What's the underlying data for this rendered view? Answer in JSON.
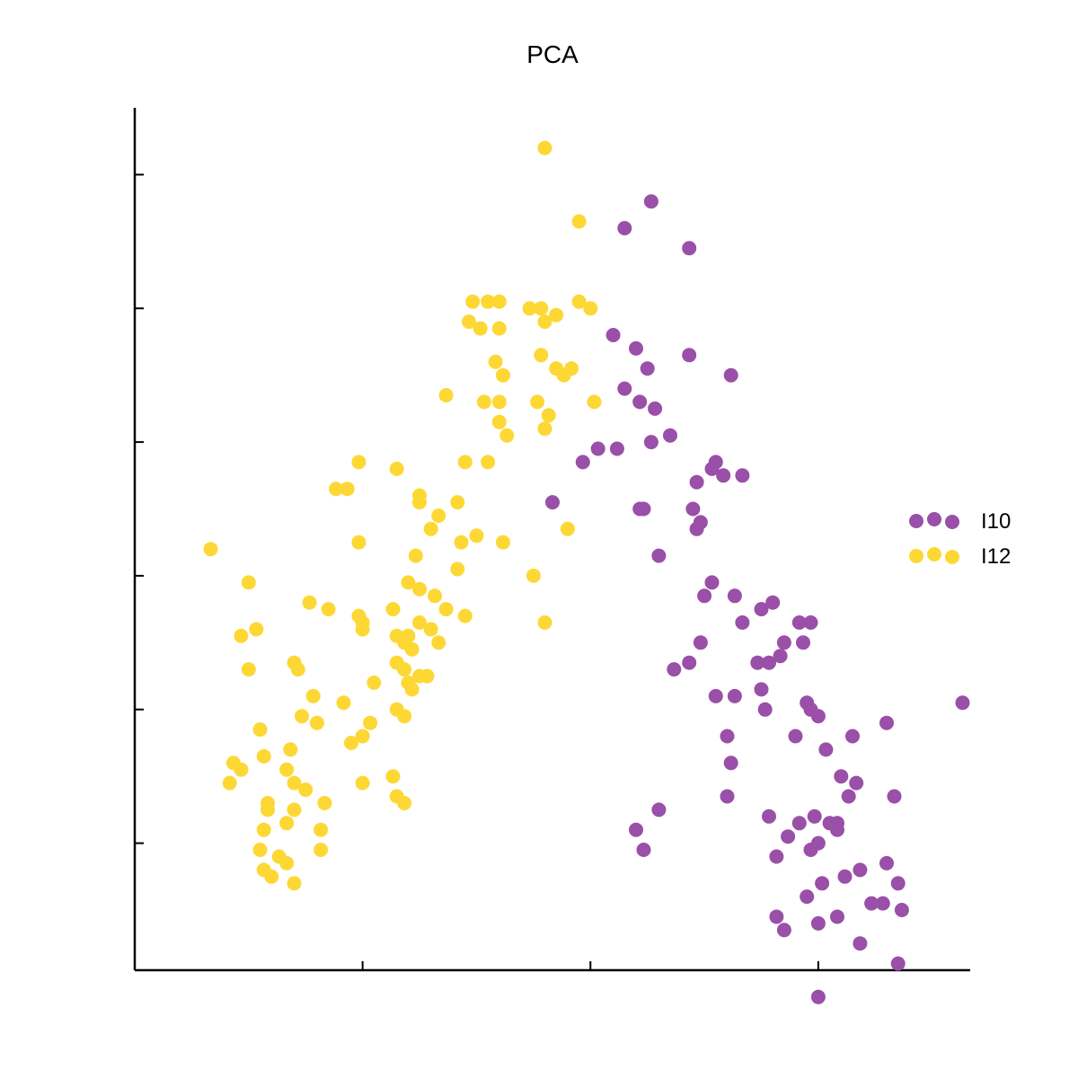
{
  "chart_data": {
    "type": "scatter",
    "title": "PCA",
    "xlabel": "",
    "ylabel": "",
    "xlim": [
      -0.6,
      1.6
    ],
    "ylim": [
      -5.9,
      7.0
    ],
    "xticks": [
      0,
      0.6,
      1.2
    ],
    "yticks": [
      -4,
      -2,
      0,
      2,
      4,
      6
    ],
    "tick_labels_shown": false,
    "grid": false,
    "legend_position": "right",
    "series": [
      {
        "name": "I10",
        "color": "#9a4fa8",
        "points": [
          [
            0.69,
            5.2
          ],
          [
            0.76,
            5.6
          ],
          [
            0.86,
            4.9
          ],
          [
            0.66,
            3.6
          ],
          [
            0.72,
            3.4
          ],
          [
            0.75,
            3.1
          ],
          [
            0.86,
            3.3
          ],
          [
            0.97,
            3.0
          ],
          [
            0.69,
            2.8
          ],
          [
            0.73,
            2.6
          ],
          [
            0.77,
            2.5
          ],
          [
            0.76,
            2.0
          ],
          [
            0.81,
            2.1
          ],
          [
            0.62,
            1.9
          ],
          [
            0.67,
            1.9
          ],
          [
            0.58,
            1.7
          ],
          [
            0.5,
            1.1
          ],
          [
            0.73,
            1.0
          ],
          [
            0.74,
            1.0
          ],
          [
            0.87,
            1.0
          ],
          [
            0.88,
            1.4
          ],
          [
            0.93,
            1.7
          ],
          [
            0.95,
            1.5
          ],
          [
            0.92,
            1.6
          ],
          [
            1.0,
            1.5
          ],
          [
            0.89,
            0.8
          ],
          [
            0.88,
            0.7
          ],
          [
            0.78,
            0.3
          ],
          [
            0.92,
            -0.1
          ],
          [
            0.9,
            -0.3
          ],
          [
            0.98,
            -0.3
          ],
          [
            1.05,
            -0.5
          ],
          [
            1.08,
            -0.4
          ],
          [
            1.15,
            -0.7
          ],
          [
            1.11,
            -1.0
          ],
          [
            1.18,
            -0.7
          ],
          [
            1.0,
            -0.7
          ],
          [
            1.04,
            -1.3
          ],
          [
            1.07,
            -1.3
          ],
          [
            0.86,
            -1.3
          ],
          [
            0.89,
            -1.0
          ],
          [
            1.16,
            -1.0
          ],
          [
            1.1,
            -1.2
          ],
          [
            1.05,
            -1.7
          ],
          [
            0.82,
            -1.4
          ],
          [
            0.93,
            -1.8
          ],
          [
            0.98,
            -1.8
          ],
          [
            0.96,
            -2.4
          ],
          [
            1.06,
            -2.0
          ],
          [
            1.14,
            -2.4
          ],
          [
            1.18,
            -2.0
          ],
          [
            1.2,
            -2.1
          ],
          [
            1.17,
            -1.9
          ],
          [
            1.22,
            -2.6
          ],
          [
            1.3,
            -3.1
          ],
          [
            1.38,
            -2.2
          ],
          [
            1.29,
            -2.4
          ],
          [
            1.26,
            -3.0
          ],
          [
            1.28,
            -3.3
          ],
          [
            1.4,
            -3.3
          ],
          [
            1.58,
            -1.9
          ],
          [
            1.2,
            -4.0
          ],
          [
            1.19,
            -3.6
          ],
          [
            0.78,
            -3.5
          ],
          [
            0.97,
            -2.8
          ],
          [
            0.96,
            -3.3
          ],
          [
            1.12,
            -3.9
          ],
          [
            1.09,
            -4.2
          ],
          [
            1.07,
            -3.6
          ],
          [
            1.15,
            -3.7
          ],
          [
            1.23,
            -3.7
          ],
          [
            1.25,
            -3.7
          ],
          [
            1.18,
            -4.1
          ],
          [
            1.25,
            -3.8
          ],
          [
            1.27,
            -4.5
          ],
          [
            1.31,
            -4.4
          ],
          [
            1.38,
            -4.3
          ],
          [
            1.41,
            -4.6
          ],
          [
            1.34,
            -4.9
          ],
          [
            1.37,
            -4.9
          ],
          [
            1.42,
            -5.0
          ],
          [
            1.25,
            -5.1
          ],
          [
            1.2,
            -5.2
          ],
          [
            1.31,
            -5.5
          ],
          [
            1.41,
            -5.8
          ],
          [
            1.2,
            -6.3
          ],
          [
            0.72,
            -3.8
          ],
          [
            0.74,
            -4.1
          ],
          [
            1.21,
            -4.6
          ],
          [
            1.17,
            -4.8
          ],
          [
            1.11,
            -5.3
          ],
          [
            1.09,
            -5.1
          ]
        ]
      },
      {
        "name": "I12",
        "color": "#fdd835",
        "points": [
          [
            0.48,
            6.4
          ],
          [
            0.57,
            5.3
          ],
          [
            0.57,
            4.1
          ],
          [
            0.6,
            4.0
          ],
          [
            0.29,
            4.1
          ],
          [
            0.33,
            4.1
          ],
          [
            0.36,
            4.1
          ],
          [
            0.28,
            3.8
          ],
          [
            0.31,
            3.7
          ],
          [
            0.36,
            3.7
          ],
          [
            0.48,
            3.8
          ],
          [
            0.44,
            4.0
          ],
          [
            0.47,
            4.0
          ],
          [
            0.51,
            3.9
          ],
          [
            0.47,
            3.3
          ],
          [
            0.51,
            3.1
          ],
          [
            0.55,
            3.1
          ],
          [
            0.35,
            3.2
          ],
          [
            0.37,
            3.0
          ],
          [
            0.36,
            2.6
          ],
          [
            0.32,
            2.6
          ],
          [
            0.36,
            2.3
          ],
          [
            0.46,
            2.6
          ],
          [
            0.49,
            2.4
          ],
          [
            0.53,
            3.0
          ],
          [
            0.61,
            2.6
          ],
          [
            0.38,
            2.1
          ],
          [
            0.22,
            2.7
          ],
          [
            0.48,
            2.2
          ],
          [
            0.33,
            1.7
          ],
          [
            0.27,
            1.7
          ],
          [
            0.09,
            1.6
          ],
          [
            -0.04,
            1.3
          ],
          [
            0.15,
            1.2
          ],
          [
            0.25,
            1.1
          ],
          [
            0.2,
            0.9
          ],
          [
            0.26,
            0.5
          ],
          [
            0.3,
            0.6
          ],
          [
            0.37,
            0.5
          ],
          [
            0.45,
            0.0
          ],
          [
            -0.01,
            0.5
          ],
          [
            0.14,
            0.3
          ],
          [
            0.15,
            1.1
          ],
          [
            -0.01,
            1.7
          ],
          [
            -0.07,
            1.3
          ],
          [
            -0.4,
            0.4
          ],
          [
            0.12,
            -0.1
          ],
          [
            0.18,
            0.7
          ],
          [
            0.25,
            0.1
          ],
          [
            0.48,
            -0.7
          ],
          [
            0.54,
            0.7
          ],
          [
            -0.01,
            -0.6
          ],
          [
            0.11,
            -1.0
          ],
          [
            0.13,
            -1.1
          ],
          [
            0.11,
            -1.4
          ],
          [
            0.15,
            -0.2
          ],
          [
            0.12,
            -0.9
          ],
          [
            0.18,
            -0.8
          ],
          [
            0.09,
            -0.9
          ],
          [
            0.15,
            -0.7
          ],
          [
            0.15,
            -1.5
          ],
          [
            0.12,
            -1.6
          ],
          [
            0.08,
            -0.5
          ],
          [
            0.0,
            -0.8
          ],
          [
            0.0,
            -0.7
          ],
          [
            0.09,
            -1.3
          ],
          [
            0.03,
            -1.6
          ],
          [
            -0.05,
            -1.9
          ],
          [
            -0.09,
            -0.5
          ],
          [
            0.17,
            -1.5
          ],
          [
            0.22,
            -0.5
          ],
          [
            0.19,
            -0.3
          ],
          [
            0.2,
            -1.0
          ],
          [
            0.27,
            -0.6
          ],
          [
            0.13,
            -1.7
          ],
          [
            -0.14,
            -0.4
          ],
          [
            -0.17,
            -1.4
          ],
          [
            -0.28,
            -0.8
          ],
          [
            -0.32,
            -0.9
          ],
          [
            -0.3,
            -0.1
          ],
          [
            -0.3,
            -1.4
          ],
          [
            -0.34,
            -2.8
          ],
          [
            -0.35,
            -3.1
          ],
          [
            -0.32,
            -2.9
          ],
          [
            -0.26,
            -2.7
          ],
          [
            -0.2,
            -2.9
          ],
          [
            -0.15,
            -3.2
          ],
          [
            -0.2,
            -3.7
          ],
          [
            -0.25,
            -3.5
          ],
          [
            -0.26,
            -3.8
          ],
          [
            -0.27,
            -4.1
          ],
          [
            -0.26,
            -4.4
          ],
          [
            -0.24,
            -4.5
          ],
          [
            -0.2,
            -4.3
          ],
          [
            -0.18,
            -4.6
          ],
          [
            -0.11,
            -4.1
          ],
          [
            -0.11,
            -3.8
          ],
          [
            -0.1,
            -3.4
          ],
          [
            -0.12,
            -2.2
          ],
          [
            -0.13,
            -1.8
          ],
          [
            -0.16,
            -2.1
          ],
          [
            -0.19,
            -2.6
          ],
          [
            -0.27,
            -2.3
          ],
          [
            -0.25,
            -3.4
          ],
          [
            -0.22,
            -4.2
          ],
          [
            -0.18,
            -3.5
          ],
          [
            -0.18,
            -3.1
          ],
          [
            0.11,
            -3.4
          ],
          [
            0.0,
            -3.1
          ],
          [
            0.0,
            -2.4
          ],
          [
            0.02,
            -2.2
          ],
          [
            0.08,
            -3.0
          ],
          [
            0.09,
            -3.3
          ],
          [
            0.09,
            -2.0
          ],
          [
            0.11,
            -2.1
          ],
          [
            -0.03,
            -2.5
          ],
          [
            -0.18,
            -1.3
          ]
        ]
      }
    ]
  }
}
